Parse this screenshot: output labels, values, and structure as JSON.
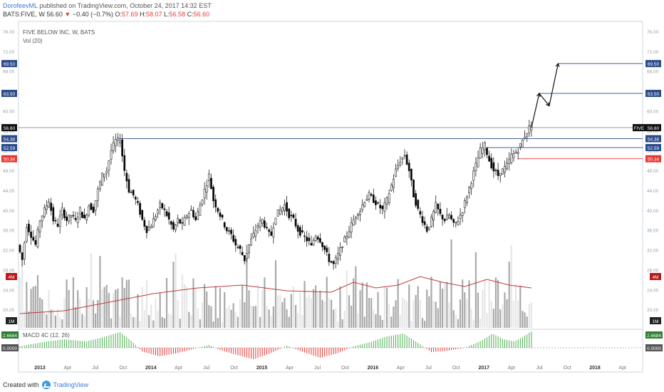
{
  "header": {
    "author": "DorofeevML",
    "published_text": "published on TradingView.com, October 24, 2017 14:32 EST",
    "symbol_line": "BATS:FIVE, W",
    "last": "56.60",
    "change": "−0.40 (−0.7%)",
    "o_label": "O:",
    "o_value": "57.69",
    "h_label": "H:",
    "h_value": "58.07",
    "l_label": "L:",
    "l_value": "56.58",
    "c_label": "C:",
    "c_value": "56.60"
  },
  "legend": {
    "main": "FIVE BELOW INC, W, BATS",
    "vol": "Vol (20)",
    "macd": "MACD 4C (12, 26)"
  },
  "footer": {
    "created_with": "Created with",
    "brand": "TradingView"
  },
  "colors": {
    "candle_up_body": "#ffffff",
    "candle_down_body": "#000000",
    "level_blue": "#2c4b8a",
    "level_red": "#e53935",
    "level_black": "#111111",
    "vol_dark": "#a9a9a9",
    "vol_light": "#e6e6e6",
    "vol_ma": "#c0393b",
    "macd_pos": "#4caf50",
    "macd_neg": "#e53935",
    "price_tag_green": "#2e7d32"
  },
  "chart_data": {
    "type": "candlestick",
    "y_axis": {
      "ticks": [
        "76.00",
        "72.00",
        "68.00",
        "64.00",
        "60.00",
        "56.00",
        "52.00",
        "48.00",
        "44.00",
        "40.00",
        "36.00",
        "32.00",
        "28.00",
        "24.00",
        "20.00"
      ],
      "range": [
        16,
        78
      ]
    },
    "x_axis": {
      "ticks": [
        "2013",
        "Apr",
        "Jul",
        "Oct",
        "2014",
        "Apr",
        "Jul",
        "Oct",
        "2015",
        "Apr",
        "Jul",
        "Oct",
        "2016",
        "Apr",
        "Jul",
        "Oct",
        "2017",
        "Apr",
        "Jul",
        "Oct",
        "2018",
        "Apr"
      ]
    },
    "price_tags": [
      {
        "label": "69.50",
        "value": 69.5,
        "color": "level_blue"
      },
      {
        "label": "63.50",
        "value": 63.5,
        "color": "level_blue"
      },
      {
        "label": "56.60",
        "value": 56.6,
        "color": "level_black"
      },
      {
        "label": "54.38",
        "value": 54.38,
        "color": "level_blue"
      },
      {
        "label": "52.59",
        "value": 52.59,
        "color": "level_blue"
      },
      {
        "label": "50.34",
        "value": 50.34,
        "color": "level_red"
      }
    ],
    "symbol_tag": "FIVE",
    "volume_tags": [
      "4M",
      "1M"
    ],
    "macd_tags": [
      "2.6684",
      "0.0000"
    ],
    "price_path": [
      [
        0,
        33
      ],
      [
        4,
        30
      ],
      [
        8,
        37
      ],
      [
        12,
        35
      ],
      [
        16,
        33
      ],
      [
        20,
        38
      ],
      [
        24,
        40
      ],
      [
        28,
        42
      ],
      [
        32,
        38
      ],
      [
        36,
        37
      ],
      [
        40,
        40
      ],
      [
        44,
        38
      ],
      [
        48,
        39
      ],
      [
        52,
        38
      ],
      [
        56,
        40
      ],
      [
        60,
        38
      ],
      [
        64,
        41
      ],
      [
        68,
        40
      ],
      [
        72,
        44
      ],
      [
        76,
        47
      ],
      [
        80,
        48
      ],
      [
        84,
        52
      ],
      [
        88,
        54
      ],
      [
        92,
        54
      ],
      [
        96,
        48
      ],
      [
        100,
        44
      ],
      [
        104,
        43
      ],
      [
        108,
        41
      ],
      [
        112,
        38
      ],
      [
        116,
        36
      ],
      [
        120,
        37
      ],
      [
        124,
        39
      ],
      [
        128,
        41
      ],
      [
        132,
        40
      ],
      [
        136,
        38
      ],
      [
        140,
        36
      ],
      [
        144,
        38
      ],
      [
        148,
        37
      ],
      [
        152,
        39
      ],
      [
        156,
        40
      ],
      [
        160,
        38
      ],
      [
        164,
        41
      ],
      [
        168,
        44
      ],
      [
        172,
        47
      ],
      [
        176,
        42
      ],
      [
        180,
        40
      ],
      [
        184,
        38
      ],
      [
        188,
        36
      ],
      [
        192,
        35
      ],
      [
        196,
        33
      ],
      [
        200,
        32
      ],
      [
        204,
        30
      ],
      [
        208,
        33
      ],
      [
        212,
        35
      ],
      [
        216,
        37
      ],
      [
        220,
        38
      ],
      [
        224,
        36
      ],
      [
        228,
        35
      ],
      [
        232,
        39
      ],
      [
        236,
        40
      ],
      [
        240,
        41
      ],
      [
        244,
        39
      ],
      [
        248,
        38
      ],
      [
        252,
        36
      ],
      [
        256,
        35
      ],
      [
        260,
        34
      ],
      [
        264,
        33
      ],
      [
        268,
        35
      ],
      [
        272,
        34
      ],
      [
        276,
        32
      ],
      [
        280,
        30
      ],
      [
        284,
        29
      ],
      [
        288,
        31
      ],
      [
        292,
        33
      ],
      [
        296,
        35
      ],
      [
        300,
        37
      ],
      [
        304,
        39
      ],
      [
        308,
        40
      ],
      [
        312,
        42
      ],
      [
        316,
        43
      ],
      [
        320,
        42
      ],
      [
        324,
        41
      ],
      [
        328,
        40
      ],
      [
        332,
        42
      ],
      [
        336,
        45
      ],
      [
        340,
        48
      ],
      [
        344,
        50
      ],
      [
        348,
        51
      ],
      [
        352,
        48
      ],
      [
        356,
        43
      ],
      [
        360,
        40
      ],
      [
        364,
        38
      ],
      [
        368,
        36
      ],
      [
        372,
        38
      ],
      [
        376,
        41
      ],
      [
        380,
        39
      ],
      [
        384,
        38
      ],
      [
        388,
        39
      ],
      [
        392,
        37
      ],
      [
        396,
        38
      ],
      [
        400,
        40
      ],
      [
        404,
        43
      ],
      [
        408,
        46
      ],
      [
        412,
        49
      ],
      [
        416,
        52
      ],
      [
        420,
        53
      ],
      [
        424,
        50
      ],
      [
        428,
        48
      ],
      [
        432,
        47
      ],
      [
        436,
        48
      ],
      [
        440,
        49
      ],
      [
        444,
        51
      ],
      [
        448,
        51.5
      ],
      [
        452,
        53
      ],
      [
        456,
        55
      ],
      [
        460,
        56.6
      ]
    ],
    "volume_ma": [
      [
        0,
        1.0
      ],
      [
        40,
        1.2
      ],
      [
        80,
        1.8
      ],
      [
        120,
        2.4
      ],
      [
        160,
        2.8
      ],
      [
        200,
        3.0
      ],
      [
        240,
        2.6
      ],
      [
        280,
        2.5
      ],
      [
        300,
        3.2
      ],
      [
        320,
        2.8
      ],
      [
        340,
        3.0
      ],
      [
        360,
        3.6
      ],
      [
        380,
        3.2
      ],
      [
        400,
        2.9
      ],
      [
        420,
        3.4
      ],
      [
        440,
        3.0
      ],
      [
        460,
        2.8
      ]
    ],
    "macd": [
      [
        0,
        0.2
      ],
      [
        20,
        0.8
      ],
      [
        40,
        1.2
      ],
      [
        60,
        0.9
      ],
      [
        75,
        1.5
      ],
      [
        90,
        2.2
      ],
      [
        100,
        1.0
      ],
      [
        110,
        -0.5
      ],
      [
        125,
        -1.2
      ],
      [
        140,
        -0.8
      ],
      [
        155,
        -0.2
      ],
      [
        170,
        0.4
      ],
      [
        180,
        -0.3
      ],
      [
        195,
        -1.0
      ],
      [
        210,
        -1.6
      ],
      [
        225,
        -0.8
      ],
      [
        240,
        0.3
      ],
      [
        255,
        -0.6
      ],
      [
        270,
        -1.4
      ],
      [
        285,
        -0.8
      ],
      [
        300,
        0.2
      ],
      [
        315,
        0.8
      ],
      [
        330,
        1.6
      ],
      [
        345,
        2.0
      ],
      [
        355,
        1.0
      ],
      [
        370,
        -0.6
      ],
      [
        385,
        -0.4
      ],
      [
        400,
        0.0
      ],
      [
        415,
        1.0
      ],
      [
        425,
        2.0
      ],
      [
        435,
        1.2
      ],
      [
        445,
        0.9
      ],
      [
        455,
        1.8
      ],
      [
        460,
        2.3
      ]
    ],
    "projection": [
      [
        460,
        56.6
      ],
      [
        467,
        63.5
      ],
      [
        476,
        61.0
      ],
      [
        484,
        69.5
      ]
    ]
  }
}
